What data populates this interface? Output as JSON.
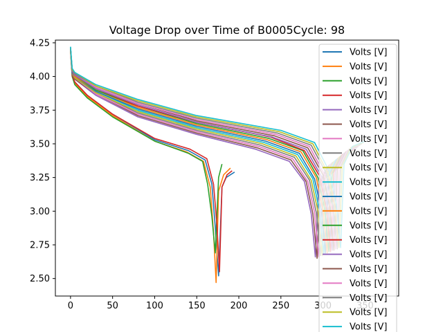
{
  "chart_data": {
    "type": "line",
    "title": "Voltage Drop over Time of B0005Cycle: 98",
    "xlabel": "",
    "ylabel": "",
    "xlim": [
      -18,
      390
    ],
    "ylim": [
      2.37,
      4.27
    ],
    "x_ticks": [
      0,
      50,
      100,
      150,
      200,
      250,
      300,
      350
    ],
    "y_ticks": [
      2.5,
      2.75,
      3.0,
      3.25,
      3.5,
      3.75,
      4.0,
      4.25
    ],
    "y_tick_labels": [
      "2.50",
      "2.75",
      "3.00",
      "3.25",
      "3.50",
      "3.75",
      "4.00",
      "4.25"
    ],
    "grid": false,
    "legend_position": "upper-right",
    "series_colors": [
      "#1f77b4",
      "#ff7f0e",
      "#2ca02c",
      "#d62728",
      "#9467bd",
      "#8c564b",
      "#e377c2",
      "#7f7f7f",
      "#bcbd22",
      "#17becf"
    ],
    "legend_entries": [
      "Volts [V]",
      "Volts [V]",
      "Volts [V]",
      "Volts [V]",
      "Volts [V]",
      "Volts [V]",
      "Volts [V]",
      "Volts [V]",
      "Volts [V]",
      "Volts [V]",
      "Volts [V]",
      "Volts [V]",
      "Volts [V]",
      "Volts [V]",
      "Volts [V]",
      "Volts [V]",
      "Volts [V]",
      "Volts [V]",
      "Volts [V]",
      "Volts [V]"
    ],
    "series": [
      {
        "x": [
          0,
          2,
          5,
          20,
          50,
          100,
          140,
          160,
          168,
          172,
          176,
          180,
          185,
          195
        ],
        "y": [
          4.19,
          4.0,
          3.96,
          3.86,
          3.72,
          3.53,
          3.45,
          3.38,
          3.2,
          2.88,
          2.52,
          3.18,
          3.25,
          3.29
        ]
      },
      {
        "x": [
          0,
          2,
          5,
          20,
          50,
          100,
          138,
          158,
          166,
          170,
          173,
          176,
          182,
          190
        ],
        "y": [
          4.19,
          4.0,
          3.95,
          3.85,
          3.71,
          3.52,
          3.44,
          3.37,
          3.18,
          2.84,
          2.47,
          3.15,
          3.27,
          3.32
        ]
      },
      {
        "x": [
          0,
          2,
          5,
          20,
          50,
          100,
          140,
          157,
          163,
          168,
          172,
          176,
          180
        ],
        "y": [
          4.19,
          4.0,
          3.94,
          3.84,
          3.7,
          3.52,
          3.43,
          3.37,
          3.2,
          2.96,
          2.69,
          3.25,
          3.35
        ]
      },
      {
        "x": [
          0,
          2,
          5,
          20,
          50,
          100,
          142,
          162,
          170,
          174,
          177,
          180,
          186,
          192
        ],
        "y": [
          4.2,
          4.01,
          3.96,
          3.86,
          3.72,
          3.54,
          3.46,
          3.39,
          3.2,
          2.9,
          2.55,
          3.18,
          3.27,
          3.3
        ]
      },
      {
        "x": [
          0,
          2,
          5,
          30,
          80,
          150,
          220,
          260,
          278,
          286,
          291,
          295,
          305,
          320
        ],
        "y": [
          4.2,
          4.02,
          3.98,
          3.86,
          3.7,
          3.57,
          3.46,
          3.37,
          3.22,
          2.98,
          2.66,
          3.2,
          3.33,
          3.37
        ]
      },
      {
        "x": [
          0,
          2,
          5,
          30,
          80,
          150,
          222,
          262,
          280,
          288,
          293,
          297,
          307,
          322
        ],
        "y": [
          4.2,
          4.02,
          3.98,
          3.87,
          3.71,
          3.58,
          3.47,
          3.38,
          3.22,
          2.98,
          2.65,
          3.21,
          3.34,
          3.38
        ]
      },
      {
        "x": [
          0,
          2,
          5,
          30,
          80,
          150,
          224,
          264,
          282,
          290,
          295,
          299,
          309,
          324
        ],
        "y": [
          4.2,
          4.02,
          3.99,
          3.87,
          3.72,
          3.59,
          3.48,
          3.39,
          3.22,
          2.99,
          2.66,
          3.22,
          3.35,
          3.39
        ]
      },
      {
        "x": [
          0,
          2,
          5,
          30,
          80,
          150,
          226,
          266,
          284,
          292,
          297,
          301,
          311,
          326
        ],
        "y": [
          4.21,
          4.02,
          3.99,
          3.88,
          3.73,
          3.6,
          3.49,
          3.4,
          3.23,
          2.99,
          2.67,
          3.23,
          3.36,
          3.4
        ]
      },
      {
        "x": [
          0,
          2,
          5,
          30,
          80,
          150,
          228,
          268,
          286,
          294,
          299,
          303,
          313,
          328
        ],
        "y": [
          4.21,
          4.03,
          3.99,
          3.88,
          3.74,
          3.61,
          3.5,
          3.41,
          3.23,
          3.0,
          2.67,
          3.24,
          3.37,
          3.41
        ]
      },
      {
        "x": [
          0,
          2,
          5,
          30,
          80,
          150,
          230,
          270,
          288,
          296,
          301,
          305,
          315,
          330
        ],
        "y": [
          4.22,
          4.03,
          4.0,
          3.89,
          3.75,
          3.62,
          3.51,
          3.42,
          3.24,
          3.0,
          2.68,
          3.25,
          3.38,
          3.42
        ]
      },
      {
        "x": [
          0,
          2,
          5,
          30,
          80,
          150,
          232,
          272,
          290,
          298,
          303,
          307,
          317,
          332
        ],
        "y": [
          4.21,
          4.03,
          4.0,
          3.89,
          3.76,
          3.63,
          3.52,
          3.43,
          3.24,
          3.01,
          2.69,
          3.26,
          3.39,
          3.43
        ]
      },
      {
        "x": [
          0,
          2,
          5,
          30,
          80,
          150,
          234,
          274,
          292,
          300,
          305,
          309,
          319,
          334
        ],
        "y": [
          4.21,
          4.04,
          4.0,
          3.9,
          3.77,
          3.64,
          3.53,
          3.44,
          3.25,
          3.01,
          2.69,
          3.27,
          3.4,
          3.44
        ]
      },
      {
        "x": [
          0,
          2,
          5,
          30,
          80,
          150,
          236,
          276,
          294,
          302,
          307,
          311,
          321,
          336
        ],
        "y": [
          4.21,
          4.04,
          4.01,
          3.9,
          3.78,
          3.65,
          3.54,
          3.45,
          3.25,
          3.02,
          2.7,
          3.28,
          3.41,
          3.45
        ]
      },
      {
        "x": [
          0,
          2,
          5,
          30,
          80,
          150,
          238,
          278,
          296,
          304,
          309,
          313,
          323,
          338
        ],
        "y": [
          4.21,
          4.04,
          4.01,
          3.91,
          3.78,
          3.66,
          3.55,
          3.45,
          3.26,
          3.02,
          2.7,
          3.29,
          3.42,
          3.46
        ]
      },
      {
        "x": [
          0,
          2,
          5,
          30,
          80,
          150,
          240,
          280,
          298,
          306,
          311,
          315,
          325,
          340
        ],
        "y": [
          4.21,
          4.04,
          4.01,
          3.91,
          3.79,
          3.66,
          3.55,
          3.46,
          3.26,
          3.02,
          2.71,
          3.3,
          3.43,
          3.47
        ]
      },
      {
        "x": [
          0,
          2,
          5,
          30,
          80,
          150,
          242,
          282,
          300,
          308,
          313,
          317,
          327,
          342
        ],
        "y": [
          4.21,
          4.05,
          4.02,
          3.92,
          3.8,
          3.67,
          3.56,
          3.47,
          3.27,
          3.03,
          2.71,
          3.31,
          3.44,
          3.48
        ]
      },
      {
        "x": [
          0,
          2,
          5,
          30,
          80,
          150,
          244,
          284,
          302,
          310,
          315,
          319,
          329,
          344
        ],
        "y": [
          4.21,
          4.05,
          4.02,
          3.92,
          3.8,
          3.68,
          3.57,
          3.48,
          3.27,
          3.03,
          2.72,
          3.32,
          3.45,
          3.49
        ]
      },
      {
        "x": [
          0,
          2,
          5,
          30,
          80,
          150,
          246,
          286,
          304,
          312,
          317,
          321,
          331,
          346
        ],
        "y": [
          4.21,
          4.05,
          4.02,
          3.93,
          3.81,
          3.69,
          3.58,
          3.49,
          3.28,
          3.04,
          2.72,
          3.33,
          3.46,
          3.5
        ]
      },
      {
        "x": [
          0,
          2,
          5,
          30,
          80,
          150,
          248,
          288,
          306,
          314,
          319,
          323,
          333,
          348
        ],
        "y": [
          4.21,
          4.05,
          4.03,
          3.93,
          3.82,
          3.7,
          3.59,
          3.5,
          3.28,
          3.04,
          2.73,
          3.34,
          3.47,
          3.51
        ]
      },
      {
        "x": [
          0,
          2,
          5,
          30,
          80,
          150,
          250,
          290,
          308,
          316,
          321,
          325,
          335,
          350
        ],
        "y": [
          4.22,
          4.06,
          4.03,
          3.94,
          3.83,
          3.71,
          3.6,
          3.51,
          3.29,
          3.05,
          2.73,
          3.35,
          3.48,
          3.52
        ]
      }
    ]
  }
}
